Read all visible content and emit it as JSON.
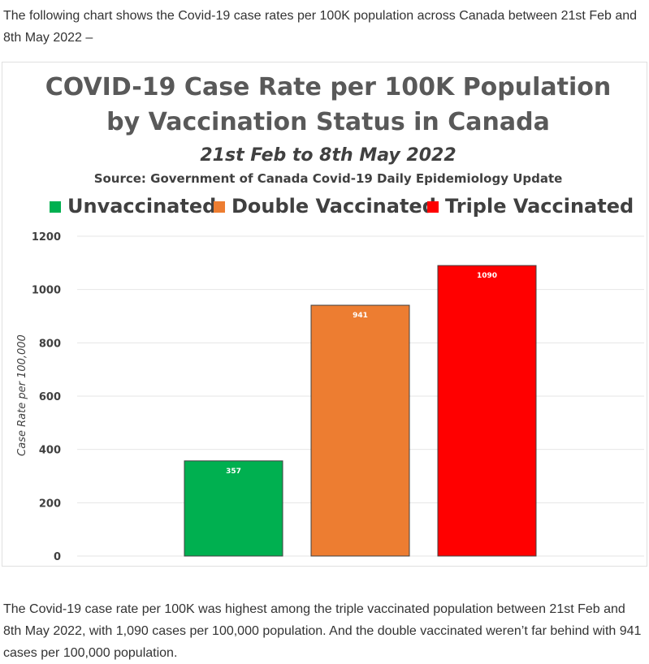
{
  "article": {
    "intro": "The following chart shows the Covid-19 case rates per 100K population across Canada between 21st Feb and 8th May 2022 –",
    "outro": "The Covid-19 case rate per 100K was highest among the triple vaccinated population between 21st Feb and 8th May 2022, with 1,090 cases per 100,000 population. And the double vaccinated weren’t far behind with 941 cases per 100,000 population."
  },
  "chart_data": {
    "type": "bar",
    "title_line1": "COVID-19 Case Rate per 100K Population",
    "title_line2": "by Vaccination Status in Canada",
    "subtitle": "21st Feb to 8th May 2022",
    "source": "Source: Government of Canada Covid-19 Daily Epidemiology Update",
    "ylabel": "Case Rate per 100,000",
    "ylim": [
      0,
      1200
    ],
    "yticks": [
      0,
      200,
      400,
      600,
      800,
      1000,
      1200
    ],
    "grid": true,
    "legend_position": "top",
    "categories": [
      "Unvaccinated",
      "Double Vaccinated",
      "Triple Vaccinated"
    ],
    "values": [
      357,
      941,
      1090
    ],
    "data_labels": [
      "357",
      "941",
      "1090"
    ],
    "colors": [
      "#00b050",
      "#ed7d31",
      "#ff0000"
    ]
  }
}
